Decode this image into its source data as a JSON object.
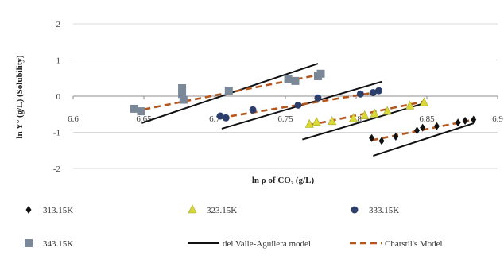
{
  "chart_data": {
    "type": "scatter",
    "xlabel": "ln ρ of CO₂ (g/L)",
    "ylabel": "ln Y° (g/L) (Solubility)",
    "xlim": [
      6.6,
      6.9
    ],
    "ylim": [
      -2,
      2
    ],
    "x_ticks": [
      "6.6",
      "6.65",
      "6.7",
      "6.75",
      "6.8",
      "6.85",
      "6.9"
    ],
    "y_ticks": [
      "2",
      "1",
      "0",
      "-1",
      "-2"
    ],
    "grid": "horizontal",
    "legend_position": "bottom",
    "series": [
      {
        "name": "313.15K",
        "marker": "diamond",
        "color": "#111111",
        "points": [
          [
            6.811,
            -1.16
          ],
          [
            6.818,
            -1.24
          ],
          [
            6.828,
            -1.12
          ],
          [
            6.843,
            -0.95
          ],
          [
            6.847,
            -0.87
          ],
          [
            6.857,
            -0.83
          ],
          [
            6.872,
            -0.73
          ],
          [
            6.877,
            -0.68
          ],
          [
            6.883,
            -0.65
          ]
        ]
      },
      {
        "name": "323.15K",
        "marker": "triangle",
        "color": "#d8d83a",
        "points": [
          [
            6.767,
            -0.78
          ],
          [
            6.772,
            -0.72
          ],
          [
            6.783,
            -0.7
          ],
          [
            6.798,
            -0.62
          ],
          [
            6.806,
            -0.54
          ],
          [
            6.813,
            -0.49
          ],
          [
            6.822,
            -0.42
          ],
          [
            6.838,
            -0.27
          ],
          [
            6.848,
            -0.18
          ]
        ]
      },
      {
        "name": "333.15K",
        "marker": "circle",
        "color": "#2c3e6b",
        "points": [
          [
            6.704,
            -0.55
          ],
          [
            6.708,
            -0.6
          ],
          [
            6.727,
            -0.38
          ],
          [
            6.759,
            -0.25
          ],
          [
            6.773,
            -0.05
          ],
          [
            6.803,
            0.06
          ],
          [
            6.812,
            0.1
          ],
          [
            6.816,
            0.15
          ]
        ]
      },
      {
        "name": "343.15K",
        "marker": "square",
        "color": "#7a8898",
        "points": [
          [
            6.643,
            -0.35
          ],
          [
            6.648,
            -0.42
          ],
          [
            6.677,
            0.22
          ],
          [
            6.677,
            0.06
          ],
          [
            6.678,
            -0.1
          ],
          [
            6.71,
            0.15
          ],
          [
            6.752,
            0.48
          ],
          [
            6.757,
            0.42
          ],
          [
            6.773,
            0.55
          ],
          [
            6.775,
            0.62
          ]
        ]
      }
    ],
    "models": [
      {
        "name": "del Valle-Aguilera model",
        "style": "solid",
        "color": "#111111",
        "segments": [
          [
            [
              6.648,
              -0.75
            ],
            [
              6.773,
              0.9
            ]
          ],
          [
            [
              6.705,
              -0.9
            ],
            [
              6.818,
              0.4
            ]
          ],
          [
            [
              6.762,
              -1.2
            ],
            [
              6.848,
              -0.2
            ]
          ],
          [
            [
              6.812,
              -1.65
            ],
            [
              6.883,
              -0.75
            ]
          ]
        ]
      },
      {
        "name": "Charstil's Model",
        "style": "dashed",
        "color": "#b5561c",
        "segments": [
          [
            [
              6.643,
              -0.42
            ],
            [
              6.775,
              0.6
            ]
          ],
          [
            [
              6.704,
              -0.6
            ],
            [
              6.816,
              0.12
            ]
          ],
          [
            [
              6.767,
              -0.8
            ],
            [
              6.848,
              -0.15
            ]
          ],
          [
            [
              6.811,
              -1.22
            ],
            [
              6.883,
              -0.65
            ]
          ]
        ]
      }
    ],
    "legend": [
      {
        "label": "313.15K",
        "kind": "marker",
        "series": 0
      },
      {
        "label": "323.15K",
        "kind": "marker",
        "series": 1
      },
      {
        "label": "333.15K",
        "kind": "marker",
        "series": 2
      },
      {
        "label": "343.15K",
        "kind": "marker",
        "series": 3
      },
      {
        "label": "del Valle-Aguilera model",
        "kind": "line",
        "model": 0
      },
      {
        "label": "Charstil's Model",
        "kind": "line",
        "model": 1
      }
    ]
  }
}
